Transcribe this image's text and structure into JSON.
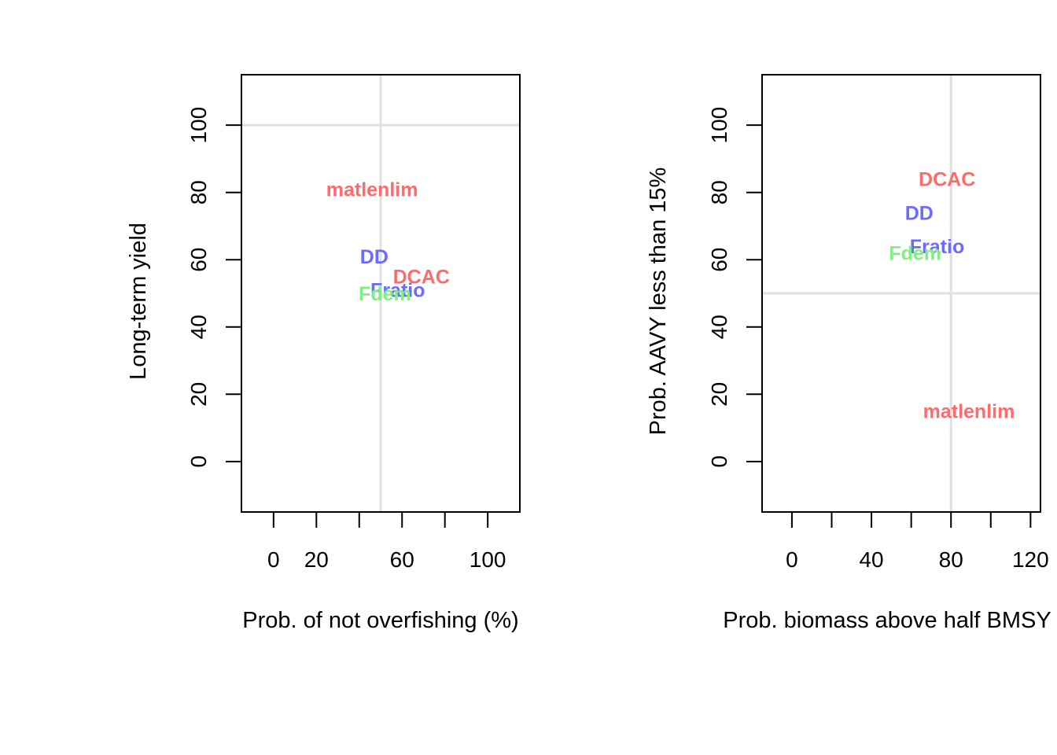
{
  "chart_data": [
    {
      "type": "scatter",
      "xlabel": "Prob. of not overfishing (%)",
      "ylabel": "Long-term yield",
      "xlim": [
        -15,
        115
      ],
      "ylim": [
        -15,
        115
      ],
      "xticks": [
        0,
        20,
        40,
        60,
        80,
        100
      ],
      "xtick_labels": [
        "0",
        "20",
        "",
        "60",
        "",
        "100"
      ],
      "yticks": [
        0,
        20,
        40,
        60,
        80,
        100
      ],
      "ytick_labels": [
        "0",
        "20",
        "40",
        "60",
        "80",
        "100"
      ],
      "reference_lines": {
        "x": 50,
        "y": 100,
        "color": "#e0e0e0"
      },
      "points": [
        {
          "label": "matlenlim",
          "x": 46,
          "y": 81,
          "color": "#ff6b6b"
        },
        {
          "label": "DD",
          "x": 47,
          "y": 61,
          "color": "#6b6bff"
        },
        {
          "label": "DCAC",
          "x": 69,
          "y": 55,
          "color": "#ff6b6b"
        },
        {
          "label": "Fratio",
          "x": 58,
          "y": 51,
          "color": "#6b6bff"
        },
        {
          "label": "Fdem",
          "x": 52,
          "y": 50,
          "color": "#7fef7f"
        }
      ]
    },
    {
      "type": "scatter",
      "xlabel": "Prob. biomass above half BMSY",
      "ylabel": "Prob. AAVY less than 15%",
      "xlim": [
        -15,
        125
      ],
      "ylim": [
        -15,
        115
      ],
      "xticks": [
        0,
        20,
        40,
        60,
        80,
        100,
        120
      ],
      "xtick_labels": [
        "0",
        "",
        "40",
        "",
        "80",
        "",
        "120"
      ],
      "yticks": [
        0,
        20,
        40,
        60,
        80,
        100
      ],
      "ytick_labels": [
        "0",
        "20",
        "40",
        "60",
        "80",
        "100"
      ],
      "reference_lines": {
        "x": 80,
        "y": 50,
        "color": "#e0e0e0"
      },
      "points": [
        {
          "label": "DCAC",
          "x": 78,
          "y": 84,
          "color": "#ff6b6b"
        },
        {
          "label": "DD",
          "x": 64,
          "y": 74,
          "color": "#6b6bff"
        },
        {
          "label": "Fratio",
          "x": 73,
          "y": 64,
          "color": "#6b6bff"
        },
        {
          "label": "Fdem",
          "x": 62,
          "y": 62,
          "color": "#7fef7f"
        },
        {
          "label": "matlenlim",
          "x": 89,
          "y": 15,
          "color": "#ff6b6b"
        }
      ]
    }
  ]
}
